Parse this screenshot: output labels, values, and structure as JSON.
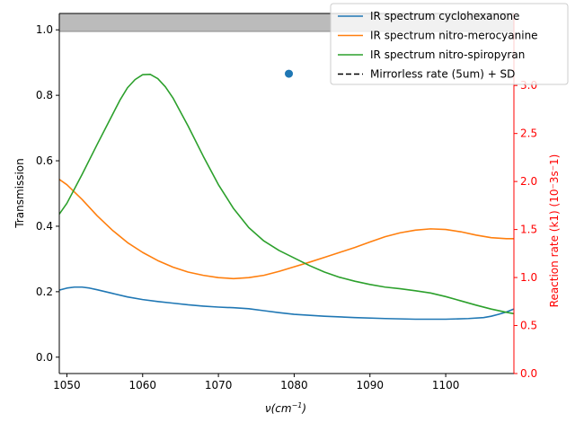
{
  "chart_data": {
    "type": "line",
    "xlabel": "ν(cm⁻¹)",
    "xlabel_main": "ν(",
    "xlabel_cm": "cm",
    "xlabel_exp": "−1",
    "xlabel_close": ")",
    "ylabel_left": "Transmission",
    "ylabel_right": "Reaction rate (k1) (10⁻3s⁻1)",
    "xlim": [
      1049,
      1109
    ],
    "ylim_left": [
      -0.05,
      1.05
    ],
    "ylim_right": [
      0,
      3.75
    ],
    "x_ticks": [
      1050,
      1060,
      1070,
      1080,
      1090,
      1100
    ],
    "y_left_ticks": [
      "0.0",
      "0.2",
      "0.4",
      "0.6",
      "0.8",
      "1.0"
    ],
    "y_right_ticks": [
      "0.0",
      "0.5",
      "1.0",
      "1.5",
      "2.0",
      "2.5",
      "3.0"
    ],
    "right_axis_color": "#ff0000",
    "shaded_band": {
      "y_from": 0.995,
      "y_to": 1.05,
      "color": "#bbbbbb"
    },
    "scatter_point": {
      "x": 1079.3,
      "y": 0.866,
      "color": "#1f77b4"
    },
    "legend_position": "top-right",
    "series": [
      {
        "name": "IR spectrum cyclohexanone",
        "color": "#1f77b4",
        "dash": "",
        "x": [
          1049,
          1050,
          1051,
          1052,
          1053,
          1054,
          1056,
          1058,
          1060,
          1062,
          1064,
          1066,
          1068,
          1070,
          1072,
          1074,
          1076,
          1078,
          1080,
          1084,
          1088,
          1092,
          1096,
          1100,
          1103,
          1105,
          1106,
          1107,
          1108,
          1109
        ],
        "y": [
          0.205,
          0.211,
          0.214,
          0.214,
          0.211,
          0.206,
          0.195,
          0.184,
          0.176,
          0.17,
          0.165,
          0.16,
          0.156,
          0.153,
          0.151,
          0.148,
          0.142,
          0.136,
          0.131,
          0.125,
          0.121,
          0.118,
          0.116,
          0.116,
          0.118,
          0.121,
          0.125,
          0.131,
          0.138,
          0.147
        ]
      },
      {
        "name": "IR spectrum nitro-merocyanine",
        "color": "#ff7f0e",
        "dash": "",
        "x": [
          1049,
          1050,
          1052,
          1054,
          1056,
          1058,
          1060,
          1062,
          1064,
          1066,
          1068,
          1070,
          1072,
          1074,
          1076,
          1078,
          1080,
          1082,
          1084,
          1086,
          1088,
          1090,
          1092,
          1094,
          1096,
          1098,
          1100,
          1102,
          1104,
          1106,
          1108,
          1109
        ],
        "y": [
          0.543,
          0.527,
          0.482,
          0.432,
          0.388,
          0.35,
          0.32,
          0.295,
          0.275,
          0.26,
          0.25,
          0.243,
          0.24,
          0.243,
          0.25,
          0.262,
          0.276,
          0.29,
          0.305,
          0.32,
          0.335,
          0.352,
          0.368,
          0.38,
          0.388,
          0.392,
          0.39,
          0.383,
          0.373,
          0.365,
          0.362,
          0.362
        ]
      },
      {
        "name": "IR spectrum nitro-spiropyran",
        "color": "#2ca02c",
        "dash": "",
        "x": [
          1049,
          1050,
          1052,
          1054,
          1056,
          1057,
          1058,
          1059,
          1060,
          1061,
          1062,
          1063,
          1064,
          1066,
          1068,
          1070,
          1072,
          1074,
          1076,
          1078,
          1080,
          1082,
          1084,
          1086,
          1088,
          1090,
          1092,
          1094,
          1096,
          1098,
          1100,
          1102,
          1104,
          1106,
          1108,
          1109
        ],
        "y": [
          0.437,
          0.47,
          0.558,
          0.65,
          0.74,
          0.785,
          0.823,
          0.848,
          0.863,
          0.864,
          0.851,
          0.826,
          0.792,
          0.706,
          0.614,
          0.527,
          0.454,
          0.396,
          0.355,
          0.326,
          0.303,
          0.28,
          0.26,
          0.244,
          0.232,
          0.222,
          0.214,
          0.209,
          0.203,
          0.196,
          0.185,
          0.172,
          0.159,
          0.147,
          0.137,
          0.133
        ]
      },
      {
        "name": "Mirrorless rate (5um) + SD",
        "color": "#000000",
        "dash": "6,3",
        "x": [],
        "y": []
      }
    ]
  }
}
